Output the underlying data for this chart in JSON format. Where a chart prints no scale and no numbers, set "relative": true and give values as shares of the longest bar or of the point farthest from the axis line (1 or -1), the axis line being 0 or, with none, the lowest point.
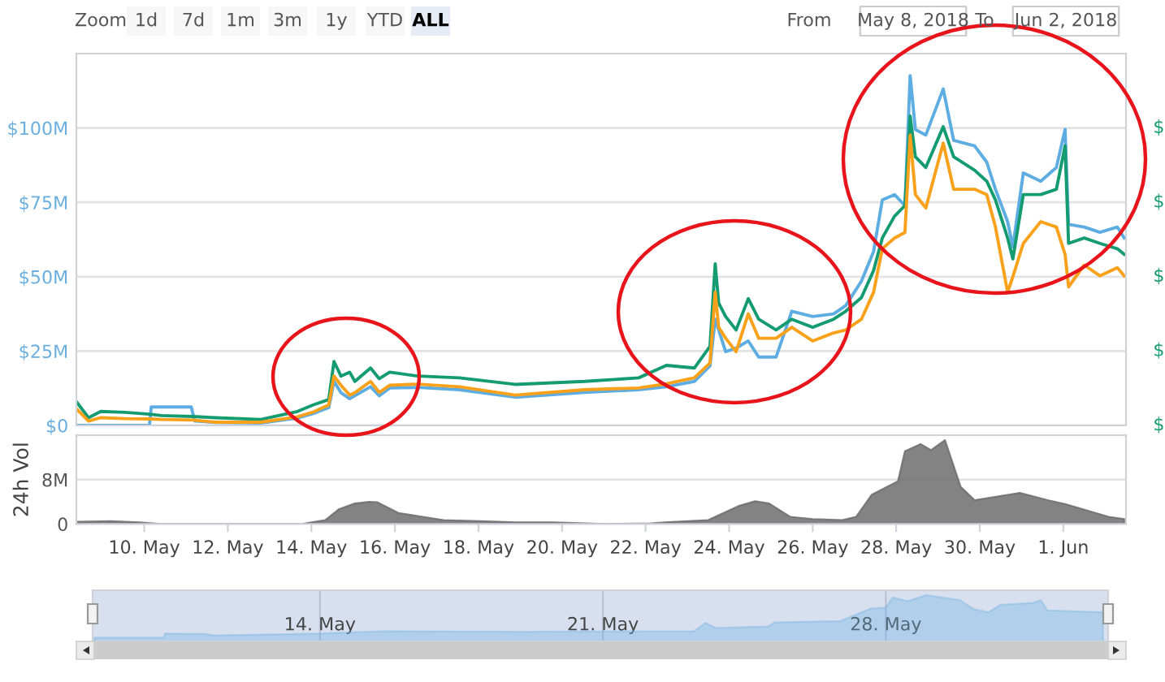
{
  "chart_data": [
    {
      "type": "line",
      "tick_labels": "y",
      "grid": "y",
      "annotations": [
        "Zoom",
        "1d",
        "7d",
        "1m",
        "3m",
        "1y",
        "YTD",
        "ALL",
        "From",
        "May 8, 2018",
        "To",
        "Jun 2, 2018",
        "$",
        "$",
        "$",
        "$",
        "$"
      ],
      "x": [
        "2018-05-08T09:00",
        "2018-05-08T16:00",
        "2018-05-08T23:00",
        "2018-05-09T13:00",
        "2018-05-10T03:00",
        "2018-05-10T10:00",
        "2018-05-11T04:00",
        "2018-05-11T17:00",
        "2018-05-12T19:00",
        "2018-05-13T16:00",
        "2018-05-14T01:00",
        "2018-05-14T10:00",
        "2018-05-14T13:00",
        "2018-05-14T17:00",
        "2018-05-14T22:00",
        "2018-05-15T01:00",
        "2018-05-15T10:00",
        "2018-05-15T15:00",
        "2018-05-15T21:00",
        "2018-05-16T13:00",
        "2018-05-17T13:00",
        "2018-05-18T21:00",
        "2018-05-20T13:00",
        "2018-05-21T20:00",
        "2018-05-22T12:00",
        "2018-05-23T04:00",
        "2018-05-23T13:00",
        "2018-05-23T16:00",
        "2018-05-23T18:00",
        "2018-05-23T22:00",
        "2018-05-24T04:00",
        "2018-05-24T11:00",
        "2018-05-24T17:00",
        "2018-05-25T03:00",
        "2018-05-25T12:00",
        "2018-05-26T00:00",
        "2018-05-26T12:00",
        "2018-05-26T19:00",
        "2018-05-27T04:00",
        "2018-05-27T11:00",
        "2018-05-27T16:00",
        "2018-05-27T23:00",
        "2018-05-28T05:00",
        "2018-05-28T08:00",
        "2018-05-28T11:00",
        "2018-05-28T17:00",
        "2018-05-29T03:00",
        "2018-05-29T09:00",
        "2018-05-29T21:00",
        "2018-05-30T04:00",
        "2018-05-30T09:00",
        "2018-05-30T16:00",
        "2018-05-30T19:00",
        "2018-05-31T01:00",
        "2018-05-31T11:00",
        "2018-05-31T20:00",
        "2018-06-01T01:00",
        "2018-06-01T03:00",
        "2018-06-01T12:00",
        "2018-06-01T21:00",
        "2018-06-02T07:00",
        "2018-06-02T11:00"
      ],
      "series": [
        {
          "color": "#5dade2",
          "x": [
            "2018-05-08T09:00",
            "2018-05-10T03:00",
            "2018-05-10T04:00",
            "2018-05-11T03:00",
            "2018-05-11T05:00",
            "2018-05-11T17:00",
            "2018-05-12T19:00",
            "2018-05-13T16:00",
            "2018-05-14T01:00",
            "2018-05-14T10:00",
            "2018-05-14T13:00",
            "2018-05-14T17:00",
            "2018-05-14T22:00",
            "2018-05-15T10:00",
            "2018-05-15T15:00",
            "2018-05-15T21:00",
            "2018-05-16T13:00",
            "2018-05-17T13:00",
            "2018-05-18T21:00",
            "2018-05-20T13:00",
            "2018-05-21T20:00",
            "2018-05-22T12:00",
            "2018-05-23T04:00",
            "2018-05-23T13:00",
            "2018-05-23T16:00",
            "2018-05-23T22:00",
            "2018-05-24T04:00",
            "2018-05-24T11:00",
            "2018-05-24T17:00",
            "2018-05-25T03:00",
            "2018-05-25T12:00",
            "2018-05-26T00:00",
            "2018-05-26T12:00",
            "2018-05-26T19:00",
            "2018-05-27T04:00",
            "2018-05-27T11:00",
            "2018-05-27T16:00",
            "2018-05-27T23:00",
            "2018-05-28T05:00",
            "2018-05-28T08:00",
            "2018-05-28T11:00",
            "2018-05-28T17:00",
            "2018-05-29T03:00",
            "2018-05-29T09:00",
            "2018-05-29T21:00",
            "2018-05-30T04:00",
            "2018-05-30T09:00",
            "2018-05-30T16:00",
            "2018-05-30T19:00",
            "2018-05-31T01:00",
            "2018-05-31T11:00",
            "2018-05-31T20:00",
            "2018-06-01T01:00",
            "2018-06-01T03:00",
            "2018-06-01T12:00",
            "2018-06-01T21:00",
            "2018-06-02T07:00",
            "2018-06-02T11:00"
          ],
          "values": [
            0,
            0,
            6.2,
            6.2,
            1.5,
            1.0,
            0.8,
            2.5,
            4.0,
            6.0,
            14.8,
            11,
            9.0,
            13,
            10,
            12.6,
            12.8,
            12,
            9.5,
            11.1,
            12.0,
            13.0,
            14.8,
            20,
            35.7,
            24.8,
            26,
            28.4,
            23.0,
            23,
            38.4,
            36.6,
            37.5,
            40.3,
            48.5,
            58.5,
            75.8,
            77.6,
            73.9,
            117.6,
            99.5,
            97.6,
            113.1,
            95.8,
            94.0,
            88.5,
            79.4,
            68.5,
            60,
            84.9,
            82.1,
            86.7,
            99.5,
            67.6,
            66.7,
            64.9,
            66.7,
            63.0
          ]
        },
        {
          "color": "#149b6f",
          "values": [
            8.0,
            2.6,
            4.7,
            4.4,
            3.8,
            3.3,
            3.0,
            2.6,
            2.0,
            4.7,
            6.9,
            8.7,
            21.5,
            16.6,
            17.9,
            14.8,
            19.3,
            15.7,
            17.9,
            16.6,
            16.0,
            13.8,
            14.8,
            16.0,
            20.2,
            19.3,
            26.6,
            54.3,
            41.1,
            36.6,
            32.1,
            42.6,
            35.7,
            32.1,
            35.7,
            33.0,
            35.7,
            38.4,
            43.0,
            52.1,
            63.0,
            70.3,
            73.9,
            104.0,
            90.3,
            86.7,
            100.4,
            90.3,
            85.8,
            82.1,
            75.8,
            63.0,
            56,
            77.6,
            77.6,
            79.4,
            94.0,
            61.2,
            63.0,
            61.2,
            59.4,
            57.5
          ]
        },
        {
          "color": "#f9a11b",
          "values": [
            5.6,
            1.5,
            2.6,
            2.3,
            2.2,
            2.0,
            1.8,
            1.1,
            1.1,
            2.9,
            4.5,
            6.9,
            16.6,
            13.5,
            10.2,
            11.0,
            14.8,
            11.1,
            13.5,
            13.9,
            13.0,
            10.2,
            12.0,
            12.6,
            14.0,
            16.0,
            21.0,
            44.8,
            33,
            29.3,
            24.8,
            37.5,
            29.3,
            29.3,
            33.0,
            28.4,
            31.1,
            32.1,
            35.7,
            44.8,
            59.4,
            63.0,
            64.9,
            97.6,
            77.6,
            73.1,
            94.9,
            79.4,
            79.4,
            77.6,
            66.7,
            44.8,
            50,
            61.2,
            68.5,
            66.7,
            57.5,
            46.6,
            53.9,
            50.3,
            53.0,
            50.3
          ]
        }
      ],
      "xlim": [
        "2018-05-08T09:00",
        "2018-06-02T12:00"
      ],
      "ylim": [
        0,
        125
      ],
      "yticks": [
        {
          "value": 0,
          "label": "$0"
        },
        {
          "value": 25,
          "label": "$25M"
        },
        {
          "value": 50,
          "label": "$50M"
        },
        {
          "value": 75,
          "label": "$75M"
        },
        {
          "value": 100,
          "label": "$100M"
        }
      ]
    },
    {
      "type": "area",
      "ylabel": "24h Vol",
      "grid": "y",
      "x": [
        "2018-05-08T09:00",
        "2018-05-09T05:00",
        "2018-05-09T21:00",
        "2018-05-10T10:00",
        "2018-05-12T09:00",
        "2018-05-13T19:00",
        "2018-05-13T22:00",
        "2018-05-14T08:00",
        "2018-05-14T16:00",
        "2018-05-15T01:00",
        "2018-05-15T09:00",
        "2018-05-15T14:00",
        "2018-05-16T02:00",
        "2018-05-16T16:00",
        "2018-05-17T04:00",
        "2018-05-18T01:00",
        "2018-05-18T22:00",
        "2018-05-19T19:00",
        "2018-05-21T01:00",
        "2018-05-22T03:00",
        "2018-05-22T11:00",
        "2018-05-23T12:00",
        "2018-05-24T06:00",
        "2018-05-24T15:00",
        "2018-05-24T23:00",
        "2018-05-25T11:00",
        "2018-05-26T00:00",
        "2018-05-26T17:00",
        "2018-05-27T01:00",
        "2018-05-27T10:00",
        "2018-05-28T01:00",
        "2018-05-28T05:00",
        "2018-05-28T14:00",
        "2018-05-28T20:00",
        "2018-05-29T04:00",
        "2018-05-29T13:00",
        "2018-05-29T21:00",
        "2018-05-30T23:00",
        "2018-05-31T15:00",
        "2018-06-01T01:00",
        "2018-06-02T02:00",
        "2018-06-02T11:00"
      ],
      "series": [
        {
          "color": "#6d6d6d",
          "values": [
            0.4,
            0.5,
            0.3,
            0,
            0,
            0,
            0.2,
            0.7,
            2.7,
            3.7,
            4.0,
            3.9,
            2.0,
            1.3,
            0.7,
            0.5,
            0.3,
            0.3,
            0,
            0.1,
            0.3,
            0.7,
            3.3,
            4.1,
            3.7,
            1.3,
            0.9,
            0.7,
            1.3,
            5.3,
            7.7,
            13.1,
            14.4,
            13.3,
            15.1,
            6.7,
            4.3,
            5.6,
            4.3,
            3.6,
            1.3,
            0.9
          ]
        }
      ],
      "xlim": [
        "2018-05-08T09:00",
        "2018-06-02T12:00"
      ],
      "xticks": [
        {
          "value": "2018-05-10",
          "label": "10. May"
        },
        {
          "value": "2018-05-12",
          "label": "12. May"
        },
        {
          "value": "2018-05-14",
          "label": "14. May"
        },
        {
          "value": "2018-05-16",
          "label": "16. May"
        },
        {
          "value": "2018-05-18",
          "label": "18. May"
        },
        {
          "value": "2018-05-20",
          "label": "20. May"
        },
        {
          "value": "2018-05-22",
          "label": "22. May"
        },
        {
          "value": "2018-05-24",
          "label": "24. May"
        },
        {
          "value": "2018-05-26",
          "label": "26. May"
        },
        {
          "value": "2018-05-28",
          "label": "28. May"
        },
        {
          "value": "2018-05-30",
          "label": "30. May"
        },
        {
          "value": "2018-06-01",
          "label": "1. Jun"
        }
      ],
      "ylim": [
        0,
        16
      ],
      "yticks": [
        0,
        {
          "value": 8,
          "label": "8M"
        }
      ]
    },
    {
      "type": "area",
      "relative": true,
      "grid": "x",
      "x": [
        "2018-05-08T10:00",
        "2018-05-10T03:00",
        "2018-05-10T04:00",
        "2018-05-11T04:00",
        "2018-05-11T09:00",
        "2018-05-13T22:00",
        "2018-05-15T14:00",
        "2018-05-18T21:00",
        "2018-05-23T06:00",
        "2018-05-23T13:00",
        "2018-05-23T19:00",
        "2018-05-25T02:00",
        "2018-05-25T06:00",
        "2018-05-26T21:00",
        "2018-05-27T15:00",
        "2018-05-28T00:00",
        "2018-05-28T04:00",
        "2018-05-28T13:00",
        "2018-05-29T00:00",
        "2018-05-29T20:00",
        "2018-05-30T04:00",
        "2018-05-30T13:00",
        "2018-05-30T20:00",
        "2018-05-31T15:00",
        "2018-05-31T20:00",
        "2018-06-01T00:00",
        "2018-06-02T09:00"
      ],
      "series": [
        {
          "color": "#6aaee0",
          "values": [
            0.08,
            0.08,
            0.17,
            0.16,
            0.13,
            0.17,
            0.22,
            0.21,
            0.22,
            0.4,
            0.29,
            0.32,
            0.41,
            0.44,
            0.71,
            0.73,
            0.95,
            0.87,
            1.0,
            0.89,
            0.7,
            0.63,
            0.79,
            0.83,
            0.89,
            0.67,
            0.63
          ]
        }
      ],
      "xlim": [
        "2018-05-08T09:00",
        "2018-06-02T12:00"
      ],
      "xticks": [
        {
          "value": "2018-05-14",
          "label": "14. May"
        },
        {
          "value": "2018-05-21",
          "label": "21. May"
        },
        {
          "value": "2018-05-28",
          "label": "28. May"
        }
      ]
    }
  ]
}
